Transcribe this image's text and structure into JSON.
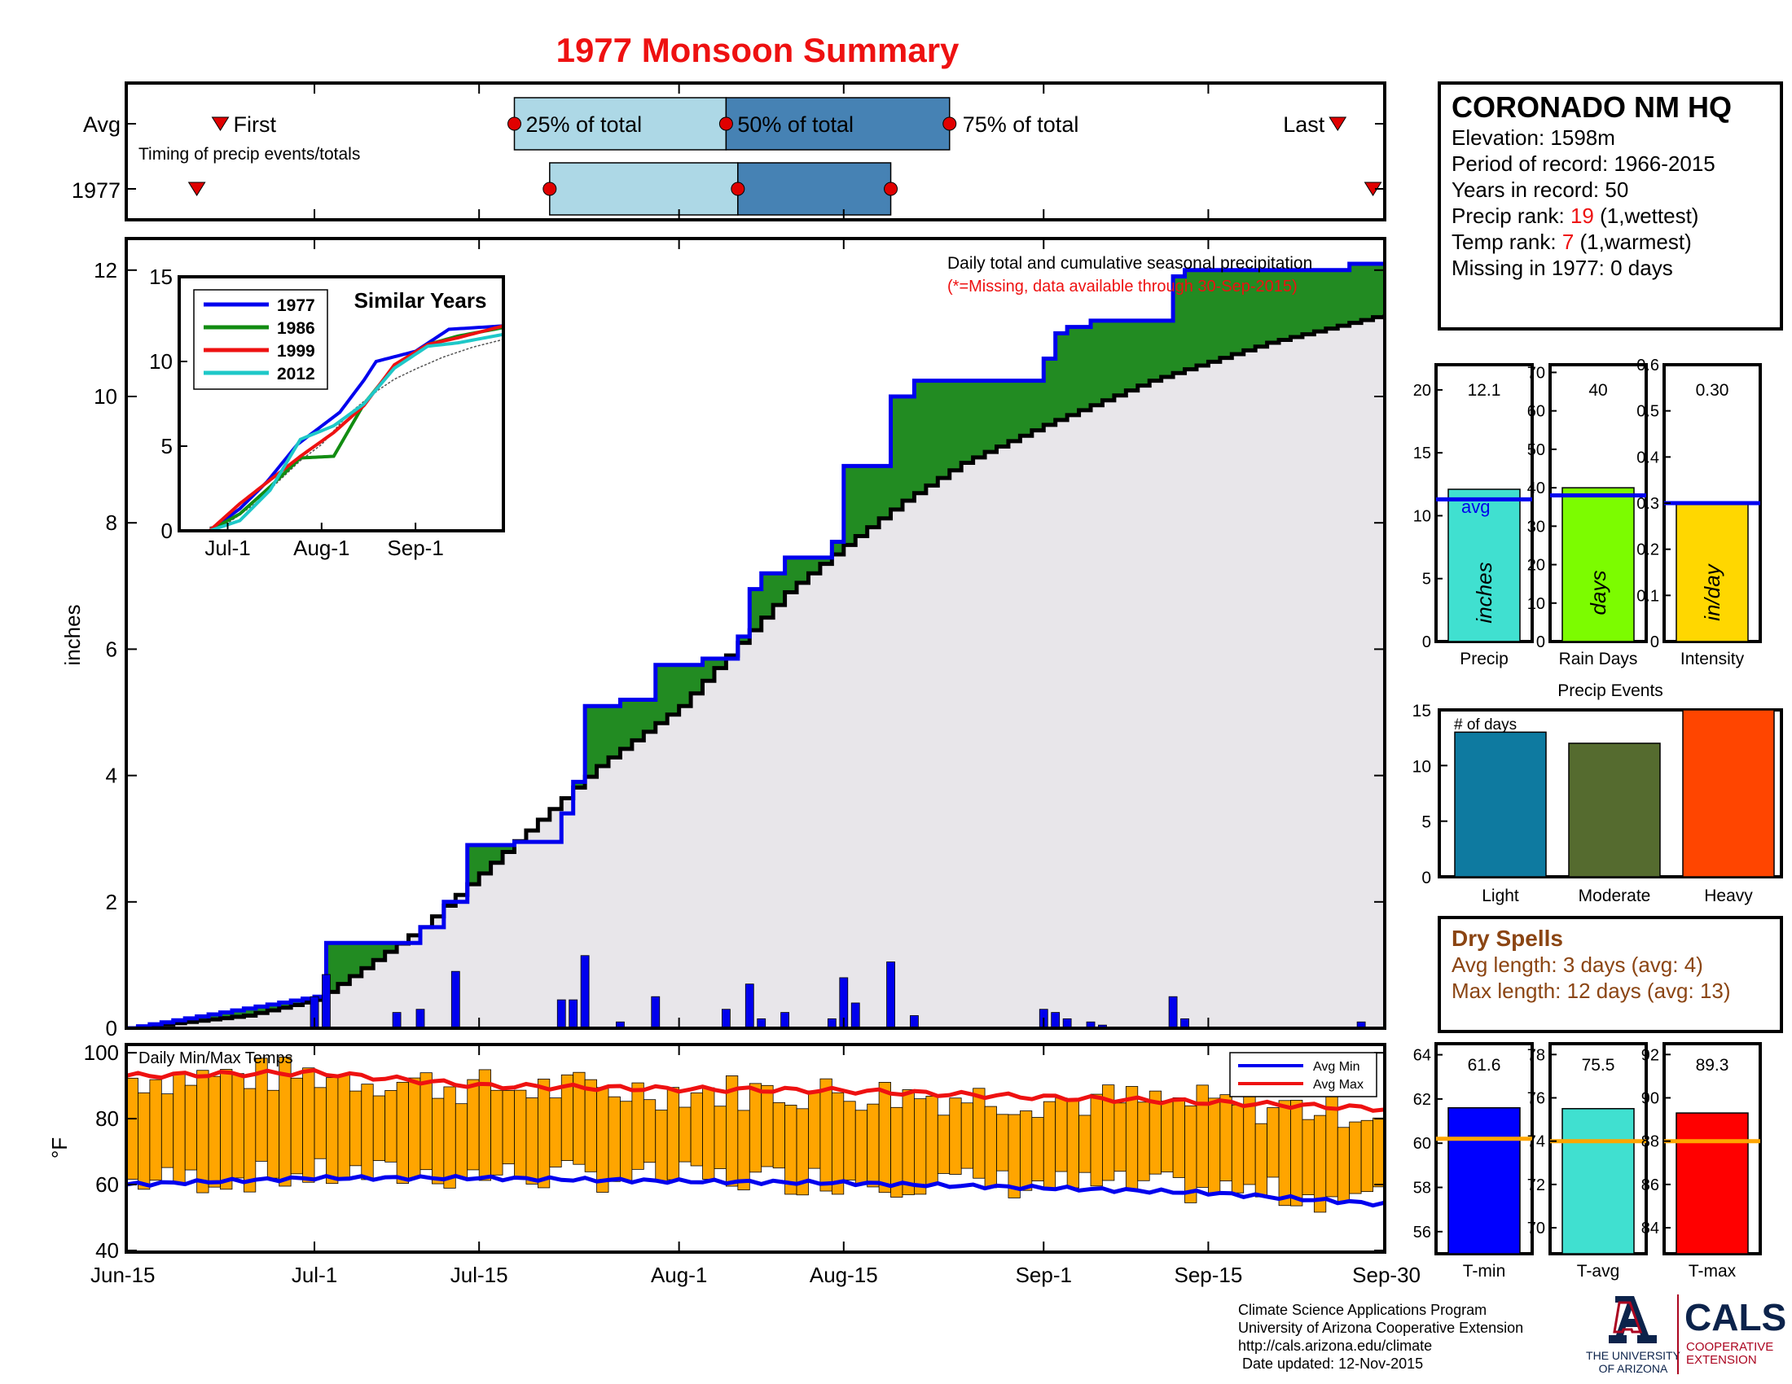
{
  "page": {
    "title": "1977 Monsoon Summary",
    "title_color": "#ee1111"
  },
  "timing": {
    "row_labels": [
      "Avg",
      "1977"
    ],
    "first_label": "First",
    "last_label": "Last",
    "subtitle": "Timing of precip events/totals",
    "p25_label": "25% of total",
    "p50_label": "50% of total",
    "p75_label": "75% of total",
    "avg": {
      "first": "Jun-23",
      "p25": "Jul-18",
      "p50": "Aug-5",
      "p75": "Aug-24",
      "last": "Sep-26"
    },
    "year": {
      "first": "Jun-21",
      "p25": "Jul-21",
      "p50": "Aug-6",
      "p75": "Aug-19",
      "last": "Sep-29"
    },
    "colors": {
      "light": "#add8e6",
      "dark": "#4682b4",
      "marker": "#e00000"
    }
  },
  "station": {
    "name": "CORONADO NM HQ",
    "elevation": "Elevation: 1598m",
    "period": "Period of record: 1966-2015",
    "years": "Years in record: 50",
    "precip_rank_label": "Precip rank: ",
    "precip_rank": "19",
    "precip_rank_note": " (1,wettest)",
    "temp_rank_label": "Temp rank: ",
    "temp_rank": "7",
    "temp_rank_note": " (1,warmest)",
    "missing": "Missing in 1977: 0 days"
  },
  "precip_chart": {
    "annotation": "Daily total and cumulative seasonal precipitation",
    "missing_note": "(*=Missing, data available through 30-Sep-2015)",
    "ylabel": "inches",
    "yticks": [
      "0",
      "2",
      "4",
      "6",
      "8",
      "10",
      "12"
    ],
    "xticks": [
      "Jun-15",
      "Jul-1",
      "Jul-15",
      "Aug-1",
      "Aug-15",
      "Sep-1",
      "Sep-15",
      "Sep-30"
    ]
  },
  "similar_years": {
    "title": "Similar Years",
    "legend": [
      "1977",
      "1986",
      "1999",
      "2012"
    ],
    "colors": [
      "#0000ee",
      "#128c12",
      "#ee1111",
      "#1ec8c8"
    ],
    "yticks": [
      "0",
      "5",
      "10",
      "15"
    ],
    "xticks": [
      "Jul-1",
      "Aug-1",
      "Sep-1"
    ]
  },
  "temp_chart": {
    "title": "Daily Min/Max Temps",
    "ylabel": "°F",
    "yticks": [
      "40",
      "60",
      "80",
      "100"
    ],
    "legend_min": "Avg Min",
    "legend_max": "Avg Max"
  },
  "summary_bars": {
    "avg_label": "avg",
    "precip": {
      "value": "12.1",
      "unit": "inches",
      "label": "Precip",
      "ticks": [
        "0",
        "5",
        "10",
        "15",
        "20"
      ],
      "color": "#40e0d0"
    },
    "rain_days": {
      "value": "40",
      "unit": "days",
      "label": "Rain Days",
      "ticks": [
        "0",
        "10",
        "20",
        "30",
        "40",
        "50",
        "60",
        "70"
      ],
      "color": "#7cfc00"
    },
    "intensity": {
      "value": "0.30",
      "unit": "in/day",
      "label": "Intensity",
      "ticks": [
        "0",
        "0.1",
        "0.2",
        "0.3",
        "0.4",
        "0.5",
        "0.6"
      ],
      "color": "#ffd700"
    }
  },
  "precip_events": {
    "title": "Precip Events",
    "ylabel": "# of days",
    "ticks": [
      "0",
      "5",
      "10",
      "15"
    ],
    "categories": [
      "Light",
      "Moderate",
      "Heavy"
    ],
    "values": [
      13,
      12,
      15
    ],
    "colors": [
      "#0e7aa0",
      "#556b2f",
      "#ff4500"
    ]
  },
  "dry_spells": {
    "title": "Dry Spells",
    "avg": "Avg length: 3 days (avg: 4)",
    "max": "Max length: 12 days (avg: 13)",
    "color": "#8b4513"
  },
  "temp_bars": {
    "tmin": {
      "value": "61.6",
      "label": "T-min",
      "ticks": [
        "56",
        "58",
        "60",
        "62",
        "64"
      ],
      "color": "#0000ff"
    },
    "tavg": {
      "value": "75.5",
      "label": "T-avg",
      "ticks": [
        "70",
        "72",
        "74",
        "76",
        "78"
      ],
      "color": "#40e0d0"
    },
    "tmax": {
      "value": "89.3",
      "label": "T-max",
      "ticks": [
        "84",
        "86",
        "88",
        "90",
        "92"
      ],
      "color": "#ff0000"
    }
  },
  "footer": {
    "line1": "Climate Science Applications Program",
    "line2": "University of Arizona Cooperative Extension",
    "line3": "http://cals.arizona.edu/climate",
    "line4": "Date updated: 12-Nov-2015",
    "ua_line1": "THE UNIVERSITY",
    "ua_line2": "OF ARIZONA",
    "cals": "CALS",
    "cals_line1": "COOPERATIVE",
    "cals_line2": "EXTENSION"
  },
  "chart_data": [
    {
      "type": "area",
      "title": "Daily total and cumulative seasonal precipitation",
      "ylabel": "inches",
      "ylim": [
        0,
        12.5
      ],
      "x_range": [
        "Jun-15",
        "Sep-30"
      ],
      "series": [
        {
          "name": "1977",
          "x": [
            "Jun-15",
            "Jul-1",
            "Jul-2",
            "Jul-7",
            "Jul-10",
            "Jul-12",
            "Jul-14",
            "Jul-18",
            "Jul-22",
            "Jul-23",
            "Jul-24",
            "Jul-27",
            "Jul-30",
            "Aug-3",
            "Aug-6",
            "Aug-7",
            "Aug-8",
            "Aug-10",
            "Aug-14",
            "Aug-15",
            "Aug-19",
            "Aug-21",
            "Sep-1",
            "Sep-2",
            "Sep-3",
            "Sep-5",
            "Sep-12",
            "Sep-13",
            "Sep-27",
            "Sep-30"
          ],
          "values": [
            0,
            0.5,
            1.35,
            1.35,
            1.6,
            2.0,
            2.9,
            2.95,
            3.4,
            3.9,
            5.1,
            5.2,
            5.75,
            5.85,
            6.2,
            6.95,
            7.2,
            7.45,
            7.7,
            8.9,
            10.0,
            10.25,
            10.6,
            11.0,
            11.1,
            11.2,
            11.9,
            12.0,
            12.1,
            12.1
          ]
        },
        {
          "name": "Average",
          "x": [
            "Jun-15",
            "Jun-25",
            "Jul-1",
            "Jul-5",
            "Jul-10",
            "Jul-15",
            "Jul-20",
            "Jul-25",
            "Aug-1",
            "Aug-5",
            "Aug-10",
            "Aug-15",
            "Aug-20",
            "Aug-25",
            "Sep-1",
            "Sep-10",
            "Sep-15",
            "Sep-20",
            "Sep-30"
          ],
          "values": [
            0,
            0.2,
            0.45,
            0.95,
            1.6,
            2.45,
            3.3,
            4.15,
            5.1,
            5.9,
            6.9,
            7.65,
            8.35,
            8.95,
            9.55,
            10.25,
            10.55,
            10.85,
            11.3
          ]
        }
      ],
      "daily_precip": {
        "x": [
          "Jul-1",
          "Jul-2",
          "Jul-8",
          "Jul-10",
          "Jul-13",
          "Jul-22",
          "Jul-23",
          "Jul-24",
          "Jul-27",
          "Jul-30",
          "Aug-5",
          "Aug-7",
          "Aug-8",
          "Aug-10",
          "Aug-14",
          "Aug-15",
          "Aug-16",
          "Aug-19",
          "Aug-21",
          "Sep-1",
          "Sep-2",
          "Sep-3",
          "Sep-5",
          "Sep-6",
          "Sep-12",
          "Sep-13",
          "Sep-28"
        ],
        "values": [
          0.5,
          0.85,
          0.25,
          0.3,
          0.9,
          0.45,
          0.45,
          1.15,
          0.1,
          0.5,
          0.3,
          0.7,
          0.15,
          0.25,
          0.15,
          0.8,
          0.4,
          1.05,
          0.2,
          0.3,
          0.25,
          0.15,
          0.1,
          0.05,
          0.5,
          0.15,
          0.1
        ]
      }
    },
    {
      "type": "line",
      "title": "Similar Years",
      "ylim": [
        0,
        15
      ],
      "x_range": [
        "Jun-15",
        "Sep-30"
      ],
      "series": [
        {
          "name": "1977",
          "x": [
            "Jun-25",
            "Jul-5",
            "Jul-14",
            "Jul-24",
            "Aug-7",
            "Aug-15",
            "Aug-19",
            "Sep-1",
            "Sep-12",
            "Sep-30"
          ],
          "values": [
            0,
            1.3,
            2.9,
            5.1,
            7.0,
            8.9,
            10.0,
            10.6,
            11.9,
            12.1
          ]
        },
        {
          "name": "1986",
          "x": [
            "Jun-25",
            "Jul-5",
            "Jul-15",
            "Jul-25",
            "Aug-5",
            "Aug-15",
            "Aug-25",
            "Sep-5",
            "Sep-15",
            "Sep-30"
          ],
          "values": [
            0,
            1.0,
            2.6,
            4.3,
            4.4,
            7.5,
            9.7,
            11.0,
            11.5,
            12.0
          ]
        },
        {
          "name": "1999",
          "x": [
            "Jun-25",
            "Jul-5",
            "Jul-15",
            "Jul-25",
            "Aug-5",
            "Aug-15",
            "Aug-25",
            "Sep-5",
            "Sep-15",
            "Sep-30"
          ],
          "values": [
            0,
            1.6,
            3.0,
            4.4,
            5.8,
            7.4,
            9.8,
            11.0,
            11.4,
            12.1
          ]
        },
        {
          "name": "2012",
          "x": [
            "Jun-25",
            "Jul-5",
            "Jul-15",
            "Jul-25",
            "Aug-5",
            "Aug-15",
            "Aug-25",
            "Sep-5",
            "Sep-15",
            "Sep-30"
          ],
          "values": [
            0,
            0.6,
            2.4,
            5.4,
            6.2,
            7.5,
            9.6,
            10.9,
            11.1,
            11.6
          ]
        }
      ]
    },
    {
      "type": "bar",
      "title": "Daily Min/Max Temps",
      "ylabel": "°F",
      "ylim": [
        40,
        100
      ],
      "x_range": [
        "Jun-15",
        "Sep-30"
      ],
      "avg_max": {
        "x": [
          "Jun-15",
          "Jul-1",
          "Jul-15",
          "Aug-1",
          "Aug-15",
          "Sep-1",
          "Sep-15",
          "Sep-30"
        ],
        "values": [
          93,
          94,
          90,
          89,
          88.5,
          86.5,
          85,
          83
        ]
      },
      "avg_min": {
        "x": [
          "Jun-15",
          "Jul-1",
          "Jul-15",
          "Aug-1",
          "Aug-15",
          "Sep-1",
          "Sep-15",
          "Sep-30"
        ],
        "values": [
          60,
          62,
          62,
          61,
          60.5,
          59,
          57.5,
          54
        ]
      }
    },
    {
      "type": "bar",
      "categories": [
        "Precip",
        "Rain Days",
        "Intensity"
      ],
      "values": [
        12.1,
        40,
        0.3
      ],
      "averages": [
        11.3,
        38,
        0.3
      ],
      "ylim": [
        [
          0,
          22
        ],
        [
          0,
          72
        ],
        [
          0,
          0.6
        ]
      ]
    },
    {
      "type": "bar",
      "title": "Precip Events",
      "ylabel": "# of days",
      "categories": [
        "Light",
        "Moderate",
        "Heavy"
      ],
      "values": [
        13,
        12,
        15
      ],
      "ylim": [
        0,
        15
      ]
    },
    {
      "type": "bar",
      "categories": [
        "T-min",
        "T-avg",
        "T-max"
      ],
      "values": [
        61.6,
        75.5,
        89.3
      ],
      "averages": [
        60.2,
        74.0,
        88.0
      ],
      "ylim": [
        [
          55,
          64.5
        ],
        [
          68.8,
          78.5
        ],
        [
          82.8,
          92.5
        ]
      ]
    }
  ]
}
